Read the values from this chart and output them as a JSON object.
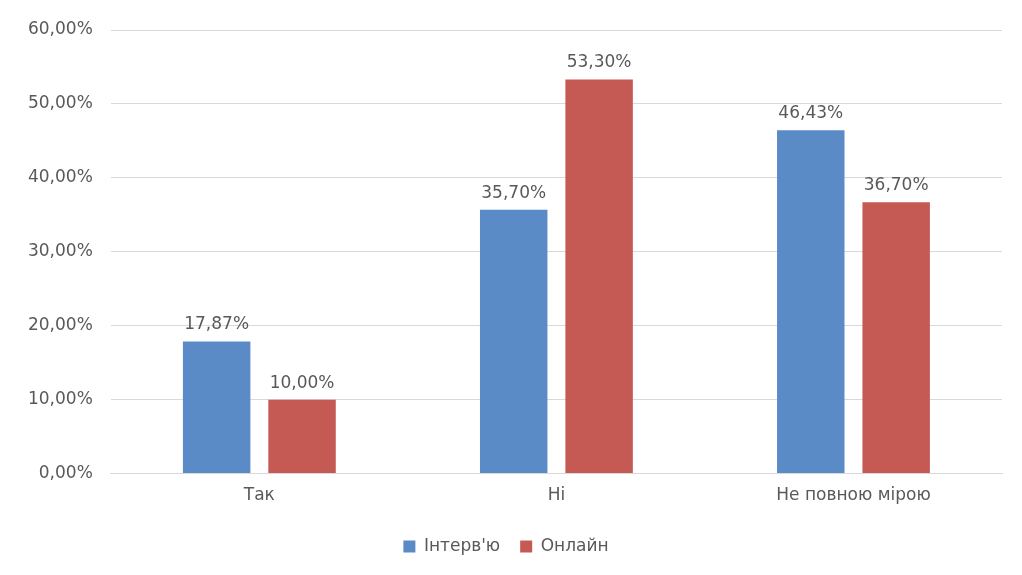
{
  "chart_data": {
    "type": "bar",
    "categories": [
      "Так",
      "Ні",
      "Не повною мірою"
    ],
    "series": [
      {
        "name": "Інтерв'ю",
        "color": "#5b8bc6",
        "values": [
          17.87,
          35.7,
          46.43
        ],
        "value_labels": [
          "17,87%",
          "35,70%",
          "46,43%"
        ]
      },
      {
        "name": "Онлайн",
        "color": "#c55a55",
        "values": [
          10,
          53.3,
          36.7
        ],
        "value_labels": [
          "10,00%",
          "53,30%",
          "36,70%"
        ]
      }
    ],
    "ylim": [
      0,
      60
    ],
    "yticks": [
      {
        "value": 0,
        "label": "0,00%"
      },
      {
        "value": 10,
        "label": "10,00%"
      },
      {
        "value": 20,
        "label": "20,00%"
      },
      {
        "value": 30,
        "label": "30,00%"
      },
      {
        "value": 40,
        "label": "40,00%"
      },
      {
        "value": 50,
        "label": "50,00%"
      },
      {
        "value": 60,
        "label": "60,00%"
      }
    ],
    "grid": "y",
    "legend": "bottom"
  }
}
